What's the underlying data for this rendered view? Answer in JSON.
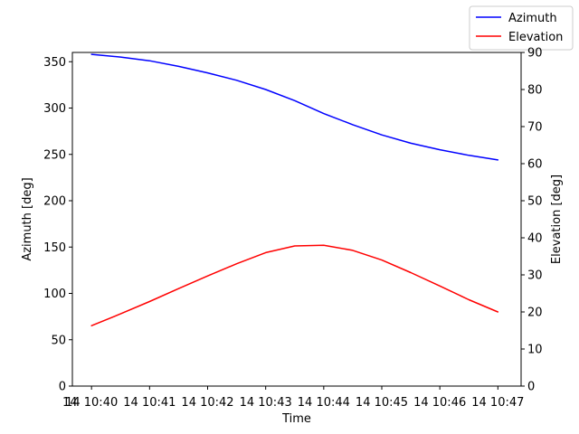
{
  "chart_data": {
    "type": "line",
    "xlabel": "Time",
    "ylabel_left": "Azimuth [deg]",
    "ylabel_right": "Elevation [deg]",
    "x_minutes": [
      0,
      0.5,
      1,
      1.5,
      2,
      2.5,
      3,
      3.5,
      4,
      4.5,
      5,
      5.5,
      6,
      6.5,
      7
    ],
    "x_ticks": [
      {
        "minute": 0,
        "label": "14 10:40"
      },
      {
        "minute": 1,
        "label": "14 10:41"
      },
      {
        "minute": 2,
        "label": "14 10:42"
      },
      {
        "minute": 3,
        "label": "14 10:43"
      },
      {
        "minute": 4,
        "label": "14 10:44"
      },
      {
        "minute": 5,
        "label": "14 10:45"
      },
      {
        "minute": 6,
        "label": "14 10:46"
      },
      {
        "minute": 7,
        "label": "14 10:47"
      }
    ],
    "x_leading_label": "14",
    "xlim": [
      -0.33,
      7.4
    ],
    "y_left": {
      "lim": [
        0,
        360
      ],
      "ticks": [
        0,
        50,
        100,
        150,
        200,
        250,
        300,
        350
      ]
    },
    "y_right": {
      "lim": [
        0,
        90
      ],
      "ticks": [
        0,
        10,
        20,
        30,
        40,
        50,
        60,
        70,
        80,
        90
      ]
    },
    "series": [
      {
        "name": "Azimuth",
        "axis": "left",
        "color": "#0000ff",
        "values": [
          358,
          355,
          351,
          345,
          338,
          330,
          320,
          308,
          294,
          282,
          271,
          262,
          255,
          249,
          244
        ]
      },
      {
        "name": "Elevation",
        "axis": "right",
        "color": "#ff0000",
        "values": [
          16.3,
          19.5,
          22.8,
          26.3,
          29.7,
          33.0,
          36.0,
          37.8,
          38.0,
          36.6,
          34.0,
          30.6,
          27.0,
          23.3,
          20.0
        ]
      }
    ],
    "legend_position": "top-right",
    "grid": false
  }
}
